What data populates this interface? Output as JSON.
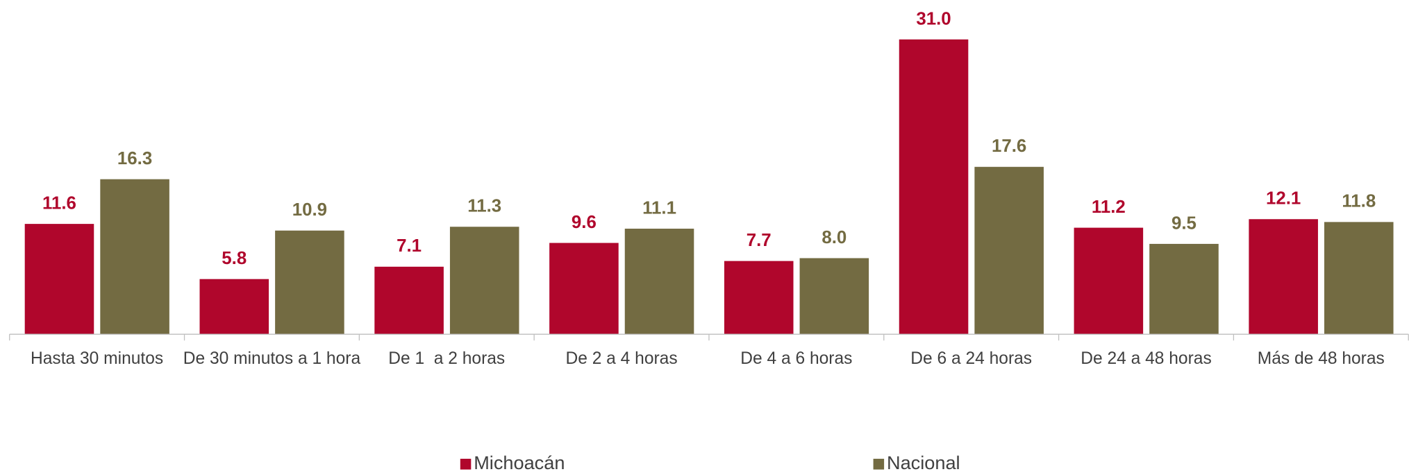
{
  "chart_data": {
    "type": "bar",
    "categories": [
      "Hasta 30 minutos",
      "De 30 minutos a 1 hora",
      "De 1  a 2 horas",
      "De 2 a 4 horas",
      "De 4 a 6 horas",
      "De 6 a 24 horas",
      "De 24 a 48 horas",
      "Más de 48 horas"
    ],
    "series": [
      {
        "name": "Michoacán",
        "color": "#b0062c",
        "values": [
          11.6,
          5.8,
          7.1,
          9.6,
          7.7,
          31.0,
          11.2,
          12.1
        ],
        "value_labels": [
          "11.6",
          "5.8",
          "7.1",
          "9.6",
          "7.7",
          "31.0",
          "11.2",
          "12.1"
        ]
      },
      {
        "name": "Nacional",
        "color": "#736b42",
        "values": [
          16.3,
          10.9,
          11.3,
          11.1,
          8.0,
          17.6,
          9.5,
          11.8
        ],
        "value_labels": [
          "16.3",
          "10.9",
          "11.3",
          "11.1",
          "8.0",
          "17.6",
          "9.5",
          "11.8"
        ]
      }
    ],
    "legend": "bottom"
  }
}
